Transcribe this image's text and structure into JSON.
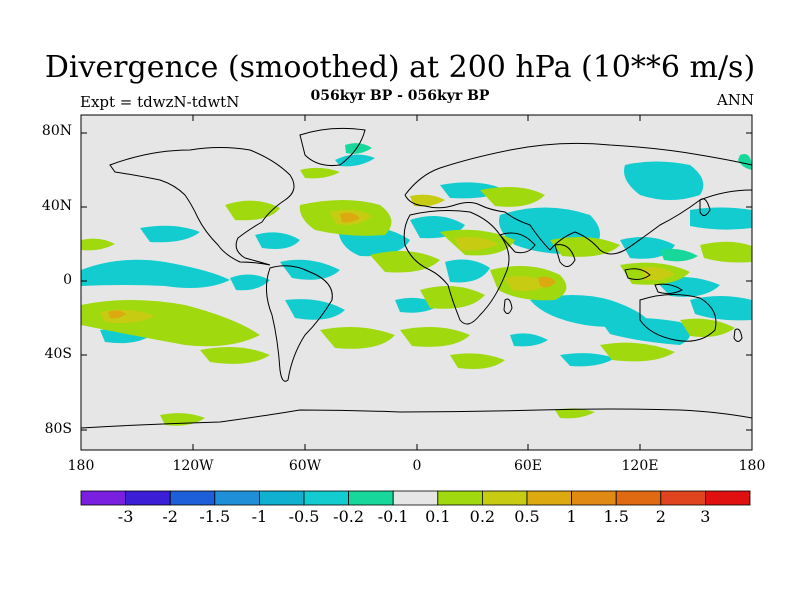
{
  "plot": {
    "title": "Divergence (smoothed) at 200 hPa (10**6 m/s)",
    "subtitle": "056kyr BP - 056kyr BP",
    "left_label": "Expt = tdwzN-tdwtN",
    "right_label": "ANN"
  },
  "axes": {
    "lat_ticks": [
      "80N",
      "40N",
      "0",
      "40S",
      "80S"
    ],
    "lon_ticks": [
      "180",
      "120W",
      "60W",
      "0",
      "60E",
      "120E",
      "180"
    ]
  },
  "colorbar": {
    "labels": [
      "-3",
      "-2",
      "-1.5",
      "-1",
      "-0.5",
      "-0.2",
      "-0.1",
      "0.1",
      "0.2",
      "0.5",
      "1",
      "1.5",
      "2",
      "3"
    ],
    "colors": [
      "#7a1fe0",
      "#3b1ed6",
      "#1c5fd8",
      "#1f8fd8",
      "#0fb0d0",
      "#12ccd0",
      "#17d89a",
      "#e6e6e6",
      "#9fd90e",
      "#c7cc12",
      "#dcaa10",
      "#e08a14",
      "#e06a12",
      "#e0441e",
      "#e01010"
    ]
  },
  "colors": {
    "background": "#e6e6e6",
    "frame": "#000000"
  }
}
